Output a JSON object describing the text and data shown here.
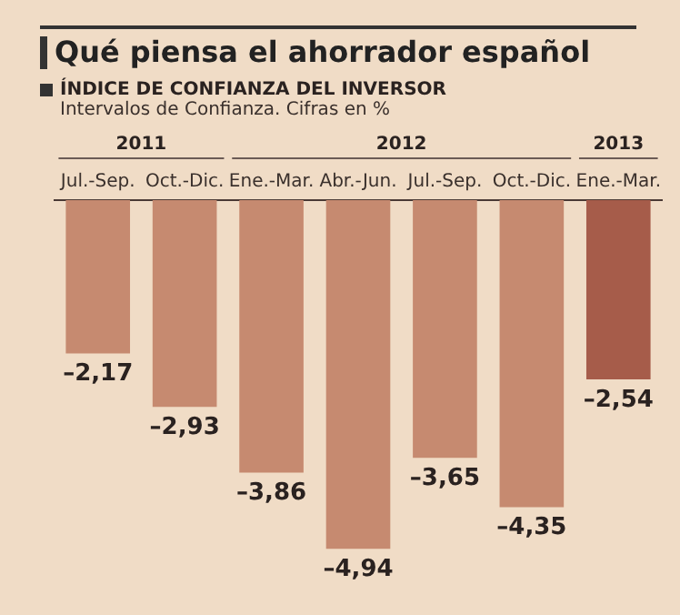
{
  "chart_data": {
    "type": "bar",
    "title": "Qué piensa el ahorrador español",
    "subtitle": "ÍNDICE DE CONFIANZA DEL INVERSOR",
    "annotations": [
      "Intervalos de Confianza. Cifras en %",
      "2011",
      "2012",
      "2013"
    ],
    "categories": [
      "Jul.-Sep.",
      "Oct.-Dic.",
      "Ene.-Mar.",
      "Abr.-Jun.",
      "Jul.-Sep.",
      "Oct.-Dic.",
      "Ene.-Mar."
    ],
    "values": [
      -2.17,
      -2.93,
      -3.86,
      -4.94,
      -3.65,
      -4.35,
      -2.54
    ],
    "value_labels": [
      "–2,17",
      "–2,93",
      "–3,86",
      "–4,94",
      "–3,65",
      "–4,35",
      "–2,54"
    ],
    "colors": [
      "#c68a70",
      "#c68a70",
      "#c68a70",
      "#c68a70",
      "#c68a70",
      "#c68a70",
      "#a65c4a"
    ],
    "grid": false,
    "legend": false
  }
}
